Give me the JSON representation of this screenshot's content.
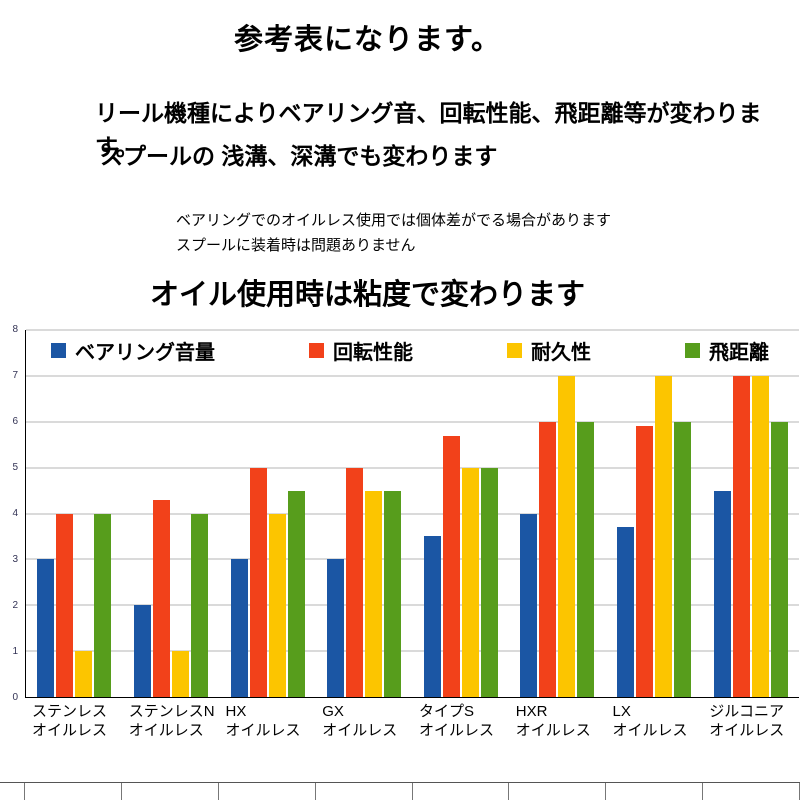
{
  "page": {
    "title": "参考表になります。",
    "desc_line1": "リール機種によりベアリング音、回転性能、飛距離等が変わります。",
    "desc_line2": "スプールの 浅溝、深溝でも変わります",
    "note_line1": "ベアリングでのオイルレス使用では個体差がでる場合があります",
    "note_line2": "スプールに装着時は問題ありません",
    "chart_heading": "オイル使用時は粘度で変わります"
  },
  "chart_data": {
    "type": "bar",
    "title": "",
    "xlabel": "",
    "ylabel": "",
    "ylim": [
      0,
      8
    ],
    "ytick_step": 1,
    "grid": true,
    "legend_position": "top-inside",
    "categories": [
      {
        "line1": "ステンレス",
        "line2": "オイルレス"
      },
      {
        "line1": "ステンレスN",
        "line2": "オイルレス"
      },
      {
        "line1": "HX",
        "line2": "オイルレス"
      },
      {
        "line1": "GX",
        "line2": "オイルレス"
      },
      {
        "line1": "タイプS",
        "line2": "オイルレス"
      },
      {
        "line1": "HXR",
        "line2": "オイルレス"
      },
      {
        "line1": "LX",
        "line2": "オイルレス"
      },
      {
        "line1": "ジルコニア",
        "line2": "オイルレス"
      }
    ],
    "series": [
      {
        "name": "ベアリング音量",
        "color": "#1b56a4",
        "values": [
          3,
          2,
          3,
          3,
          3.5,
          4,
          3.7,
          4.5
        ]
      },
      {
        "name": "回転性能",
        "color": "#f2411a",
        "values": [
          4,
          4.3,
          5,
          5,
          5.7,
          6,
          5.9,
          7
        ]
      },
      {
        "name": "耐久性",
        "color": "#fcc500",
        "values": [
          1,
          1,
          4,
          4.5,
          5,
          7,
          7,
          7
        ]
      },
      {
        "name": "飛距離",
        "color": "#579d1c",
        "values": [
          4,
          4,
          4.5,
          4.5,
          5,
          6,
          6,
          6
        ]
      }
    ]
  }
}
